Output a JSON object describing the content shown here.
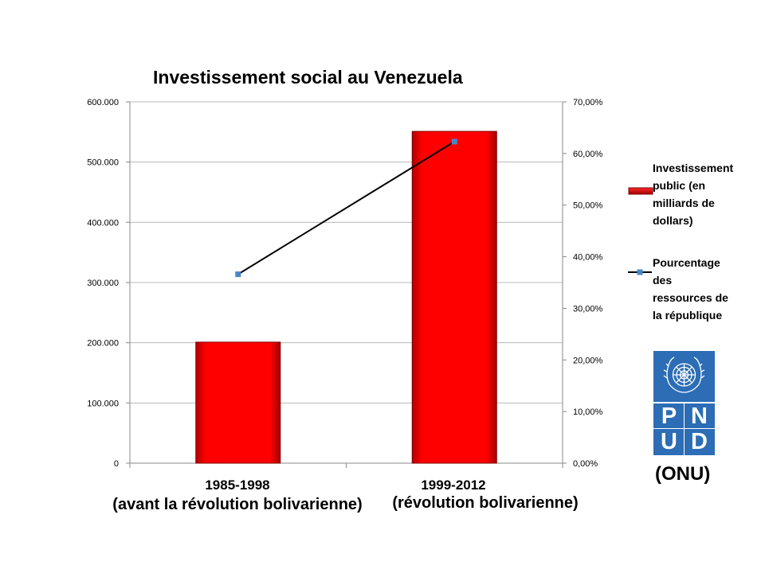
{
  "chart_data": {
    "type": "bar",
    "title": "Investissement social au Venezuela",
    "categories": [
      "1985-1998",
      "1999-2012"
    ],
    "category_subtitles": [
      "(avant la révolution bolivarienne)",
      "(révolution bolivarienne)"
    ],
    "series": [
      {
        "name": "Investissement public (en milliards de dollars)",
        "type": "bar",
        "axis": "left",
        "color": "#ff0000",
        "values": [
          201000,
          551000
        ]
      },
      {
        "name": "Pourcentage des ressources de la république",
        "type": "line",
        "axis": "right",
        "color": "#000000",
        "marker_color": "#4a86c8",
        "values": [
          36.6,
          62.3
        ]
      }
    ],
    "y_left": {
      "ylim": [
        0,
        600000
      ],
      "ticks": [
        0,
        100000,
        200000,
        300000,
        400000,
        500000,
        600000
      ],
      "tick_labels": [
        "0",
        "100.000",
        "200.000",
        "300.000",
        "400.000",
        "500.000",
        "600.000"
      ]
    },
    "y_right": {
      "ylim": [
        0,
        70
      ],
      "ticks": [
        0,
        10,
        20,
        30,
        40,
        50,
        60,
        70
      ],
      "tick_labels": [
        "0,00%",
        "10,00%",
        "20,00%",
        "30,00%",
        "40,00%",
        "50,00%",
        "60,00%",
        "70,00%"
      ]
    },
    "grid": true,
    "legend_placement": "right"
  },
  "legend": {
    "bar_label_lines": [
      "Investissement",
      "public (en",
      "milliards de",
      "dollars)"
    ],
    "line_label_lines": [
      "Pourcentage",
      "des",
      "ressources de",
      "la république"
    ]
  },
  "logo": {
    "letters": [
      "P",
      "N",
      "U",
      "D"
    ],
    "caption": "(ONU)",
    "color": "#2c6db5"
  }
}
